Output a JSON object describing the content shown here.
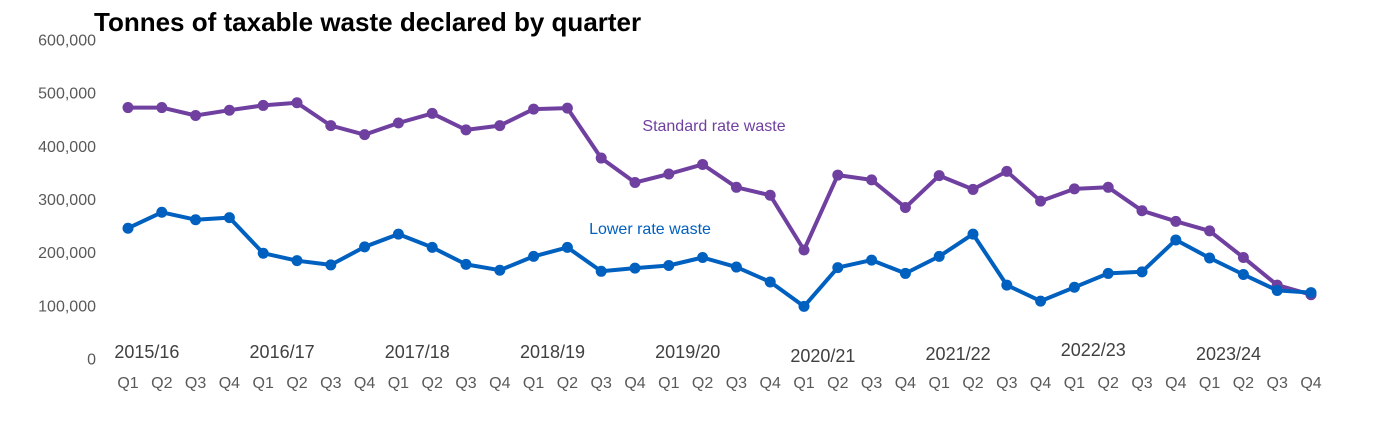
{
  "chart_data": {
    "type": "line",
    "title": "Tonnes of taxable waste declared by quarter",
    "xlabel": "",
    "ylabel": "",
    "ylim": [
      0,
      600000
    ],
    "yticks": [
      0,
      100000,
      200000,
      300000,
      400000,
      500000,
      600000
    ],
    "ytick_labels": [
      "0",
      "100,000",
      "200,000",
      "300,000",
      "400,000",
      "500,000",
      "600,000"
    ],
    "grid": false,
    "legend": "inline",
    "quarters": [
      "Q1",
      "Q2",
      "Q3",
      "Q4",
      "Q1",
      "Q2",
      "Q3",
      "Q4",
      "Q1",
      "Q2",
      "Q3",
      "Q4",
      "Q1",
      "Q2",
      "Q3",
      "Q4",
      "Q1",
      "Q2",
      "Q3",
      "Q4",
      "Q1",
      "Q2",
      "Q3",
      "Q4",
      "Q1",
      "Q2",
      "Q3",
      "Q4",
      "Q1",
      "Q2",
      "Q3",
      "Q4",
      "Q1",
      "Q2",
      "Q3",
      "Q4"
    ],
    "years": [
      {
        "label": "2015/16",
        "start": 0
      },
      {
        "label": "2016/17",
        "start": 4
      },
      {
        "label": "2017/18",
        "start": 8
      },
      {
        "label": "2018/19",
        "start": 12
      },
      {
        "label": "2019/20",
        "start": 16
      },
      {
        "label": "2020/21",
        "start": 20
      },
      {
        "label": "2021/22",
        "start": 24
      },
      {
        "label": "2022/23",
        "start": 28
      },
      {
        "label": "2023/24",
        "start": 32
      }
    ],
    "series": [
      {
        "name": "Standard rate waste",
        "color": "#7040a0",
        "values": [
          472000,
          472000,
          457000,
          467000,
          476000,
          481000,
          438000,
          421000,
          443000,
          461000,
          430000,
          438000,
          469000,
          471000,
          377000,
          331000,
          347000,
          365000,
          322000,
          307000,
          204000,
          345000,
          336000,
          284000,
          344000,
          318000,
          352000,
          296000,
          319000,
          322000,
          278000,
          258000,
          240000,
          190000,
          138000,
          120000
        ]
      },
      {
        "name": "Lower rate waste",
        "color": "#0060bf",
        "values": [
          245000,
          275000,
          261000,
          265000,
          198000,
          184000,
          176000,
          210000,
          234000,
          209000,
          177000,
          166000,
          192000,
          209000,
          164000,
          170000,
          175000,
          190000,
          172000,
          144000,
          98000,
          171000,
          185000,
          160000,
          192000,
          234000,
          138000,
          108000,
          134000,
          160000,
          163000,
          223000,
          189000,
          158000,
          128000,
          124000
        ]
      }
    ]
  }
}
